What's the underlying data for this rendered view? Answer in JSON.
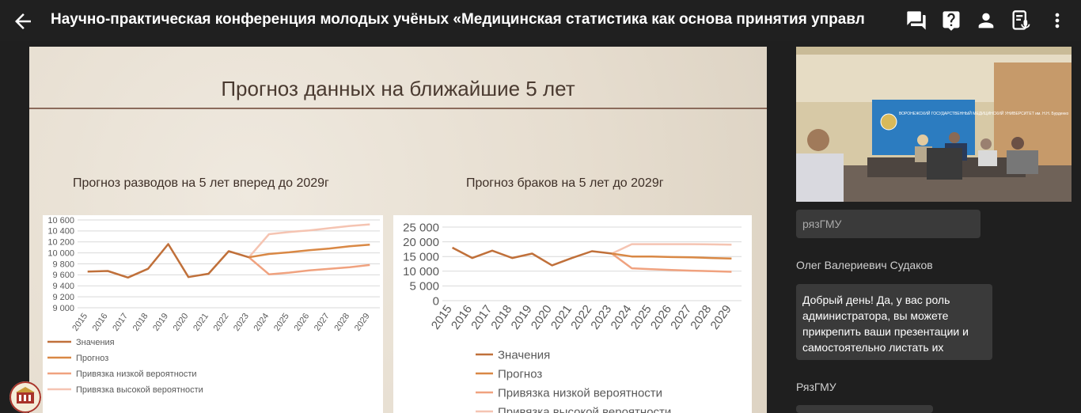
{
  "header": {
    "title": "Научно-практическая конференция молодых учёных «Медицинская статистика как основа принятия управл"
  },
  "slide": {
    "title": "Прогноз данных на ближайшие 5 лет",
    "left_chart_title": "Прогноз разводов на 5 лет вперед до 2029г",
    "right_chart_title": "Прогноз браков на 5 лет до 2029г"
  },
  "chart_data": [
    {
      "type": "line",
      "title": "Прогноз разводов на 5 лет вперед до 2029г",
      "x": [
        "2015",
        "2016",
        "2017",
        "2018",
        "2019",
        "2020",
        "2021",
        "2022",
        "2023",
        "2024",
        "2025",
        "2026",
        "2027",
        "2028",
        "2029"
      ],
      "ylim": [
        9000,
        10600
      ],
      "yticks": [
        "10 600",
        "10 400",
        "10 200",
        "10 000",
        "9 800",
        "9 600",
        "9 400",
        "9 200",
        "9 000"
      ],
      "grid": true,
      "legend_position": "bottom",
      "series": [
        {
          "name": "Значения",
          "color": "#c0703a",
          "values": [
            9660,
            9670,
            9550,
            9710,
            10160,
            9560,
            9620,
            10030,
            9920,
            null,
            null,
            null,
            null,
            null,
            null
          ]
        },
        {
          "name": "Прогноз",
          "color": "#d98845",
          "values": [
            null,
            null,
            null,
            null,
            null,
            null,
            null,
            null,
            9920,
            9980,
            10010,
            10050,
            10080,
            10120,
            10150
          ]
        },
        {
          "name": "Привязка низкой вероятности",
          "color": "#f0a27f",
          "values": [
            null,
            null,
            null,
            null,
            null,
            null,
            null,
            null,
            9920,
            9610,
            9640,
            9680,
            9710,
            9740,
            9780
          ]
        },
        {
          "name": "Привязка высокой вероятности",
          "color": "#f5c4b2",
          "values": [
            null,
            null,
            null,
            null,
            null,
            null,
            null,
            null,
            9920,
            10340,
            10380,
            10410,
            10450,
            10490,
            10520
          ]
        }
      ]
    },
    {
      "type": "line",
      "title": "Прогноз браков на 5 лет до 2029г",
      "x": [
        "2015",
        "2016",
        "2017",
        "2018",
        "2019",
        "2020",
        "2021",
        "2022",
        "2023",
        "2024",
        "2025",
        "2026",
        "2027",
        "2028",
        "2029"
      ],
      "ylim": [
        0,
        25000
      ],
      "yticks": [
        "25 000",
        "20 000",
        "15 000",
        "10 000",
        "5 000",
        "0"
      ],
      "grid": true,
      "legend_position": "bottom",
      "series": [
        {
          "name": "Значения",
          "color": "#c0703a",
          "values": [
            18000,
            14500,
            17000,
            14500,
            16000,
            12000,
            14500,
            16800,
            16000,
            null,
            null,
            null,
            null,
            null,
            null
          ]
        },
        {
          "name": "Прогноз",
          "color": "#d98845",
          "values": [
            null,
            null,
            null,
            null,
            null,
            null,
            null,
            null,
            16000,
            15000,
            15000,
            14800,
            14700,
            14500,
            14300
          ]
        },
        {
          "name": "Привязка низкой вероятности",
          "color": "#f0a27f",
          "values": [
            null,
            null,
            null,
            null,
            null,
            null,
            null,
            null,
            16000,
            11000,
            10700,
            10400,
            10200,
            10000,
            9800
          ]
        },
        {
          "name": "Привязка высокой вероятности",
          "color": "#f5c4b2",
          "values": [
            null,
            null,
            null,
            null,
            null,
            null,
            null,
            null,
            16000,
            19200,
            19200,
            19200,
            19200,
            19100,
            19000
          ]
        }
      ]
    }
  ],
  "legend_labels": [
    "Значения",
    "Прогноз",
    "Привязка низкой вероятности",
    "Привязка высокой вероятности"
  ],
  "video": {
    "banner_text": "ВОРОНЕЖСКИЙ ГОСУДАРСТВЕННЫЙ МЕДИЦИНСКИЙ УНИВЕРСИТЕТ им. Н.Н. Бурденко"
  },
  "chat": {
    "msg1_text": "рязГМУ",
    "msg2_sender": "Олег Валериевич Судаков",
    "msg2_text": "Добрый день! Да, у  вас роль администратора, вы можете прикрепить ваши презентации и самостоятельно листать их",
    "msg3_sender": "РязГМУ"
  },
  "icons": [
    "arrow-back-icon",
    "chat-icon",
    "help-icon",
    "person-icon",
    "transcript-icon",
    "more-vert-icon"
  ]
}
